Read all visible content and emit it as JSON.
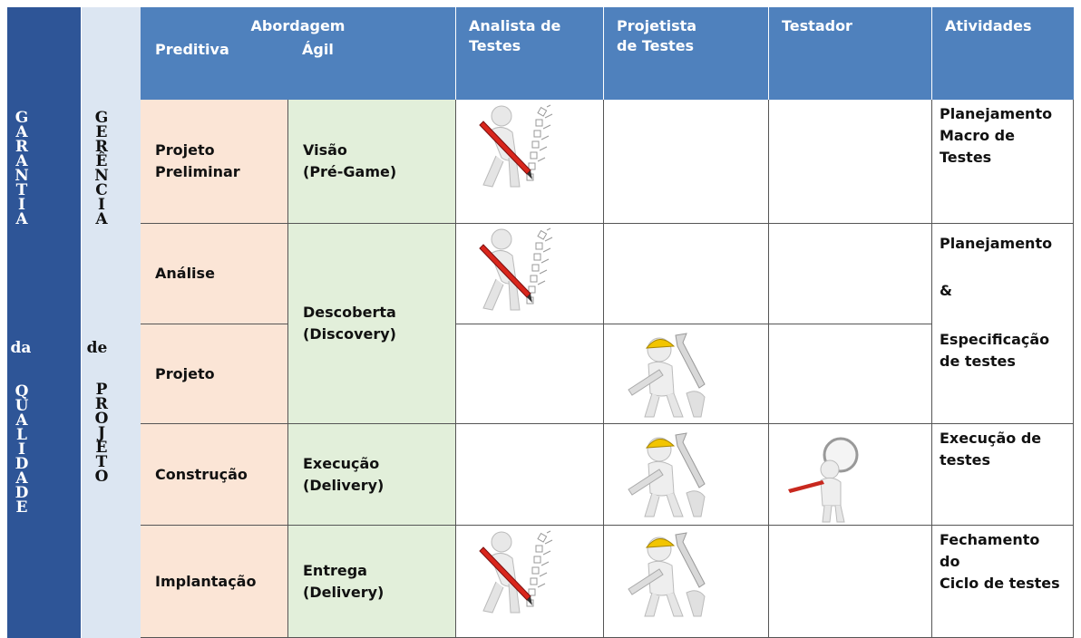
{
  "header": {
    "abordagem": "Abordagem",
    "preditiva": "Preditiva",
    "agil": "Ágil",
    "analista": "Analista de\nTestes",
    "projetista": "Projetista\nde Testes",
    "testador": "Testador",
    "atividades": "Atividades"
  },
  "side": {
    "garantia": [
      "GARANTIA",
      "da",
      "QUALIDADE"
    ],
    "gerencia": [
      "GERÊNCIA",
      "de",
      "PROJETO"
    ]
  },
  "rows": [
    {
      "preditiva": "Projeto\nPreliminar",
      "agil": "Visão\n(Pré-Game)",
      "atividades": "Planejamento\nMacro de\nTestes"
    },
    {
      "preditiva": "Análise"
    },
    {
      "preditiva": "Projeto"
    },
    {
      "preditiva": "Construção",
      "agil": "Execução\n(Delivery)",
      "atividades": "Execução de\ntestes"
    },
    {
      "preditiva": "Implantação",
      "agil": "Entrega\n(Delivery)",
      "atividades": "Fechamento\ndo\nCiclo de testes"
    }
  ],
  "merged": {
    "agil": "Descoberta\n(Discovery)",
    "atividades": [
      "Planejamento",
      "&",
      "Especificação\nde testes"
    ]
  }
}
